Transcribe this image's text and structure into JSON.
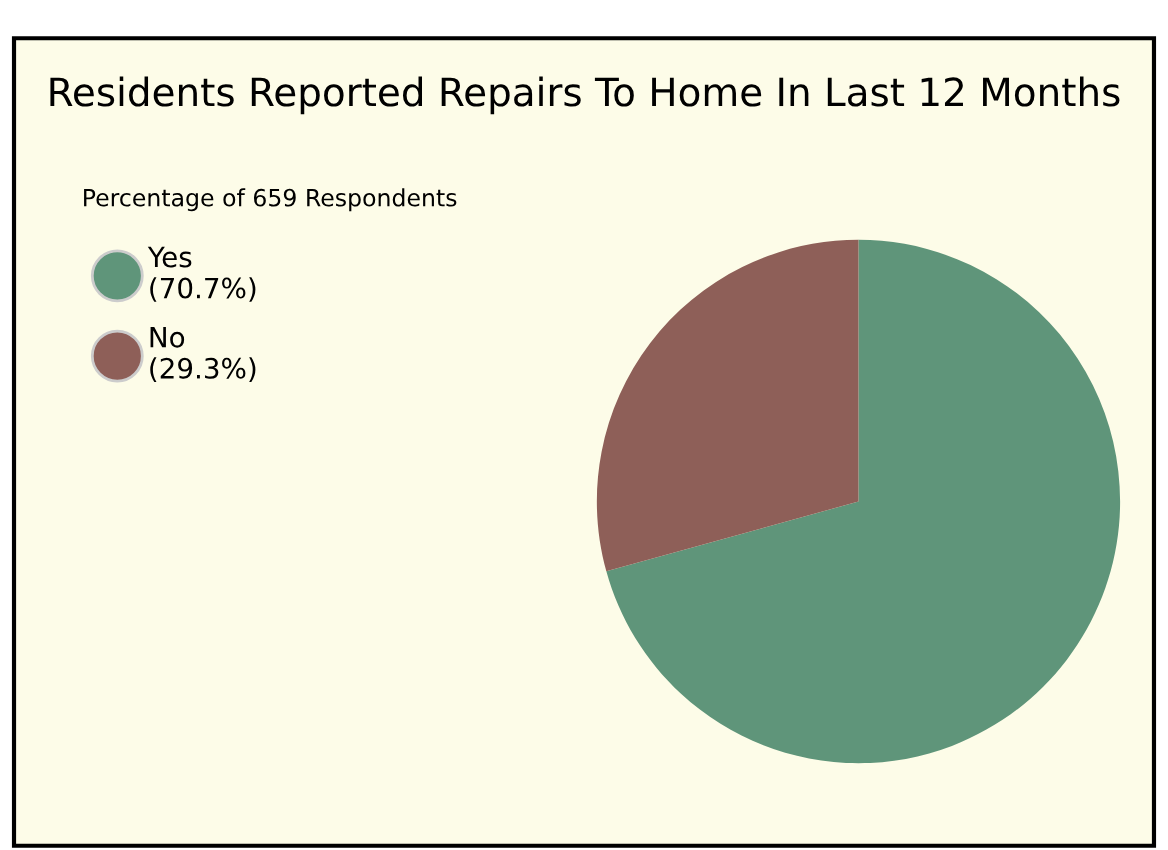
{
  "chart_data": {
    "type": "pie",
    "title": "Residents Reported Repairs To Home In Last 12 Months",
    "subtitle": "Percentage of 659 Respondents",
    "categories": [
      "Yes",
      "No"
    ],
    "values": [
      70.7,
      29.3
    ],
    "value_labels": [
      "(70.7%)",
      "(29.3%)"
    ],
    "colors": [
      "#5f957a",
      "#8e5f58"
    ],
    "legend": "top left"
  }
}
